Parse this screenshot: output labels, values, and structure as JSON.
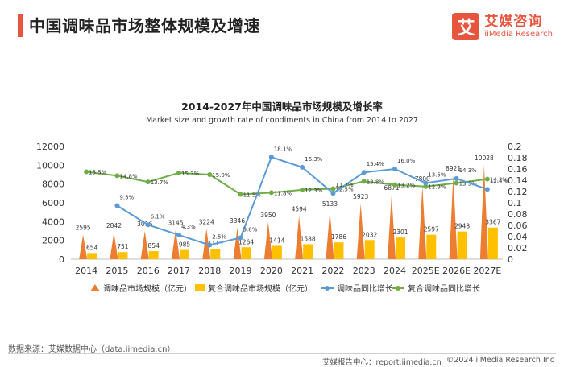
{
  "header": {
    "title": "中国调味品市场整体规模及增速",
    "brand_logo_char": "艾",
    "brand_name": "艾媒咨询",
    "brand_en": "iiMedia Research"
  },
  "footer": {
    "source": "数据来源：艾媒数据中心（data.iimedia.cn）",
    "report": "艾媒报告中心：report.iimedia.cn",
    "copyright": "©2024  iiMedia Research  Inc"
  },
  "colors": {
    "accent": "#e8553f",
    "market_size": "#ed7d31",
    "compound_size": "#ffc000",
    "growth": "#5b9bd5",
    "compound_growth": "#70ad47"
  },
  "chart_data": {
    "type": "bar",
    "title": "2014-2027年中国调味品市场规模及增长率",
    "subtitle": "Market size and growth rate of  condiments in China from 2014 to 2027",
    "categories": [
      "2014",
      "2015",
      "2016",
      "2017",
      "2018",
      "2019",
      "2020",
      "2021",
      "2022",
      "2023",
      "2024",
      "2025E",
      "2026E",
      "2027E"
    ],
    "y_left": {
      "min": 0,
      "max": 12000,
      "ticks": [
        0,
        2000,
        4000,
        6000,
        8000,
        10000,
        12000
      ]
    },
    "y_right": {
      "min": 0,
      "max": 0.2,
      "ticks": [
        "0",
        "0.02",
        "0.04",
        "0.06",
        "0.08",
        "0.1",
        "0.12",
        "0.14",
        "0.16",
        "0.18",
        "0.2"
      ]
    },
    "legend_position": "bottom",
    "series": [
      {
        "name": "调味品市场规模（亿元）",
        "kind": "spike",
        "axis": "left",
        "values": [
          2595,
          2842,
          3016,
          3145,
          3224,
          3346,
          3950,
          4594,
          5133,
          5923,
          6871,
          7800,
          8921,
          10028
        ],
        "labels": [
          "2595",
          "2842",
          "3016",
          "3145",
          "3224",
          "3346",
          "3950",
          "4594",
          "5133",
          "5923",
          "6871",
          "7800",
          "8921",
          "10028"
        ]
      },
      {
        "name": "复合调味品市场规模（亿元）",
        "kind": "bar",
        "axis": "left",
        "values": [
          654,
          751,
          854,
          985,
          1113,
          1264,
          1414,
          1588,
          1786,
          2032,
          2301,
          2597,
          2948,
          3367
        ],
        "labels": [
          "654",
          "751",
          "854",
          "985",
          "1113",
          "1264",
          "1414",
          "1588",
          "1786",
          "2032",
          "2301",
          "2597",
          "2948",
          "3367"
        ]
      },
      {
        "name": "调味品同比增长",
        "kind": "line",
        "axis": "right",
        "values": [
          null,
          0.095,
          0.061,
          0.043,
          0.025,
          0.038,
          0.181,
          0.163,
          0.117,
          0.154,
          0.16,
          0.135,
          0.143,
          0.124
        ],
        "labels": [
          "",
          "9.5%",
          "6.1%",
          "4.3%",
          "2.5%",
          "3.8%",
          "18.1%",
          "16.3%",
          "11.7%",
          "15.4%",
          "16.0%",
          "13.5%",
          "14.3%",
          "12.4%"
        ]
      },
      {
        "name": "复合调味品同比增长",
        "kind": "line",
        "axis": "right",
        "values": [
          0.155,
          0.148,
          0.137,
          0.153,
          0.15,
          0.115,
          0.118,
          0.123,
          0.125,
          0.138,
          0.132,
          0.129,
          0.135,
          0.142
        ],
        "labels": [
          "15.5%",
          "14.8%",
          "13.7%",
          "15.3%",
          "15.0%",
          "11.5%",
          "11.8%",
          "12.3%",
          "12.5%",
          "13.8%",
          "13.2%",
          "12.9%",
          "13.5%",
          "14.2%"
        ]
      }
    ]
  }
}
